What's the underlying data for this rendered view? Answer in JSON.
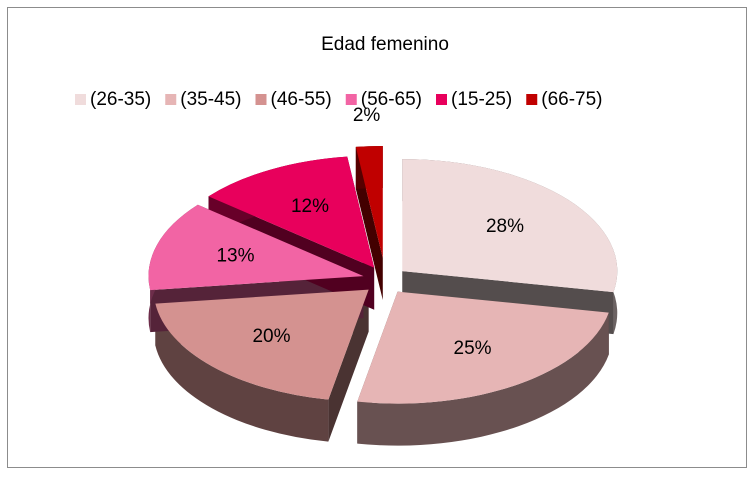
{
  "chart_data": {
    "type": "pie",
    "title": "Edad femenino",
    "categories": [
      "(26-35)",
      "(35-45)",
      "(46-55)",
      "(56-65)",
      "(15-25)",
      "(66-75)"
    ],
    "values": [
      28,
      25,
      20,
      13,
      12,
      2
    ],
    "value_labels": [
      "28%",
      "25%",
      "20%",
      "13%",
      "12%",
      "2%"
    ],
    "colors": [
      "#f0dcdc",
      "#e6b5b5",
      "#d49290",
      "#f264a4",
      "#e8005c",
      "#c00000"
    ],
    "legend": "top"
  }
}
